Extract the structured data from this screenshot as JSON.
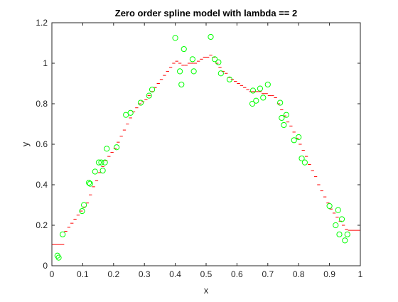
{
  "chart_data": {
    "type": "scatter",
    "title": "Zero order spline model with lambda == 2",
    "xlabel": "x",
    "ylabel": "y",
    "xlim": [
      0,
      1
    ],
    "ylim": [
      0,
      1.2
    ],
    "xticks": [
      0,
      0.1,
      0.2,
      0.3,
      0.4,
      0.5,
      0.6,
      0.7,
      0.8,
      0.9,
      1
    ],
    "yticks": [
      0,
      0.2,
      0.4,
      0.6,
      0.8,
      1,
      1.2
    ],
    "xtick_labels": [
      "0",
      "0.1",
      "0.2",
      "0.3",
      "0.4",
      "0.5",
      "0.6",
      "0.7",
      "0.8",
      "0.9",
      "1"
    ],
    "ytick_labels": [
      "0",
      "0.2",
      "0.4",
      "0.6",
      "0.8",
      "1",
      "1.2"
    ],
    "grid": false,
    "colors": {
      "points": "#00ff00",
      "model": "#ff0000",
      "axes": "#262626"
    },
    "series": [
      {
        "kind": "points",
        "marker": "circle",
        "x": [
          0.018,
          0.022,
          0.035,
          0.098,
          0.104,
          0.12,
          0.124,
          0.14,
          0.152,
          0.16,
          0.165,
          0.172,
          0.178,
          0.21,
          0.24,
          0.255,
          0.288,
          0.315,
          0.325,
          0.4,
          0.415,
          0.42,
          0.428,
          0.456,
          0.46,
          0.515,
          0.528,
          0.54,
          0.548,
          0.576,
          0.65,
          0.652,
          0.662,
          0.675,
          0.685,
          0.7,
          0.74,
          0.745,
          0.752,
          0.76,
          0.785,
          0.8,
          0.81,
          0.82,
          0.9,
          0.92,
          0.928,
          0.932,
          0.94,
          0.95,
          0.958
        ],
        "y": [
          0.05,
          0.04,
          0.155,
          0.27,
          0.3,
          0.41,
          0.405,
          0.465,
          0.51,
          0.51,
          0.47,
          0.51,
          0.578,
          0.585,
          0.745,
          0.755,
          0.805,
          0.84,
          0.87,
          1.125,
          0.96,
          0.895,
          1.07,
          1.02,
          0.96,
          1.13,
          1.02,
          1.005,
          0.95,
          0.92,
          0.8,
          0.865,
          0.815,
          0.875,
          0.83,
          0.895,
          0.805,
          0.73,
          0.695,
          0.745,
          0.62,
          0.635,
          0.53,
          0.51,
          0.295,
          0.2,
          0.275,
          0.155,
          0.23,
          0.125,
          0.155
        ]
      },
      {
        "kind": "model",
        "marker": "step",
        "x": [
          0.0,
          0.04,
          0.05,
          0.06,
          0.07,
          0.08,
          0.09,
          0.1,
          0.11,
          0.12,
          0.13,
          0.14,
          0.15,
          0.16,
          0.17,
          0.18,
          0.19,
          0.2,
          0.21,
          0.22,
          0.23,
          0.24,
          0.25,
          0.26,
          0.27,
          0.28,
          0.29,
          0.3,
          0.31,
          0.32,
          0.33,
          0.34,
          0.35,
          0.36,
          0.37,
          0.38,
          0.39,
          0.4,
          0.41,
          0.42,
          0.43,
          0.44,
          0.45,
          0.46,
          0.47,
          0.48,
          0.49,
          0.5,
          0.51,
          0.52,
          0.53,
          0.54,
          0.55,
          0.56,
          0.57,
          0.58,
          0.59,
          0.6,
          0.61,
          0.62,
          0.63,
          0.64,
          0.65,
          0.66,
          0.67,
          0.68,
          0.69,
          0.7,
          0.71,
          0.72,
          0.73,
          0.74,
          0.75,
          0.76,
          0.77,
          0.78,
          0.79,
          0.8,
          0.81,
          0.82,
          0.83,
          0.84,
          0.85,
          0.86,
          0.87,
          0.88,
          0.89,
          0.9,
          0.91,
          0.92,
          0.93,
          0.94,
          0.95,
          0.96
        ],
        "y": [
          0.105,
          0.17,
          0.19,
          0.21,
          0.23,
          0.25,
          0.27,
          0.29,
          0.31,
          0.35,
          0.39,
          0.42,
          0.46,
          0.49,
          0.52,
          0.54,
          0.56,
          0.58,
          0.61,
          0.64,
          0.67,
          0.7,
          0.73,
          0.76,
          0.78,
          0.8,
          0.81,
          0.82,
          0.84,
          0.86,
          0.88,
          0.9,
          0.92,
          0.94,
          0.96,
          0.98,
          1.0,
          1.01,
          1.0,
          0.99,
          0.99,
          1.0,
          1.0,
          1.0,
          1.01,
          1.02,
          1.03,
          1.03,
          1.04,
          1.03,
          1.0,
          0.98,
          0.96,
          0.95,
          0.93,
          0.92,
          0.91,
          0.9,
          0.89,
          0.88,
          0.87,
          0.86,
          0.86,
          0.86,
          0.86,
          0.85,
          0.85,
          0.84,
          0.84,
          0.83,
          0.8,
          0.77,
          0.74,
          0.71,
          0.69,
          0.66,
          0.63,
          0.6,
          0.57,
          0.54,
          0.5,
          0.47,
          0.44,
          0.4,
          0.37,
          0.34,
          0.31,
          0.28,
          0.26,
          0.24,
          0.22,
          0.2,
          0.18,
          0.175
        ],
        "x_end": 1.0
      }
    ]
  }
}
